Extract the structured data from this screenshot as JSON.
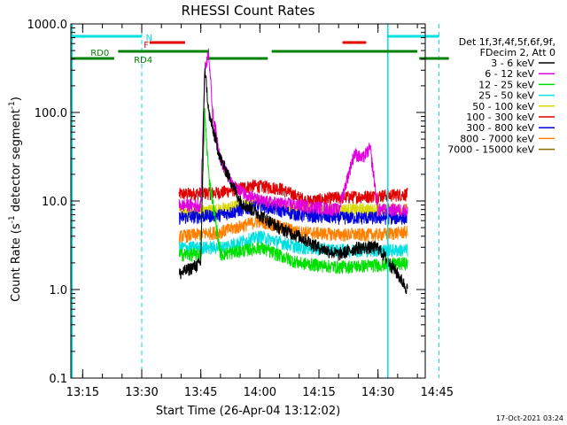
{
  "chart_data": {
    "type": "line",
    "title": "RHESSI Count Rates",
    "xlabel": "Start Time (26-Apr-04 13:12:02)",
    "ylabel_main": "Count Rate (s",
    "ylabel_exp": "-1",
    "ylabel_rest": " detector segment",
    "ylabel_exp2": "-1",
    "ylabel_end": ")",
    "y_scale": "log",
    "ylim": [
      0.1,
      1000
    ],
    "y_ticks": [
      {
        "v": 0.1,
        "label": "0.1"
      },
      {
        "v": 1,
        "label": "1.0"
      },
      {
        "v": 10,
        "label": "10.0"
      },
      {
        "v": 100,
        "label": "100.0"
      },
      {
        "v": 1000,
        "label": "1000.0"
      }
    ],
    "xlim_min": [
      792,
      882
    ],
    "x_ticks": [
      {
        "v": 795,
        "label": "13:15"
      },
      {
        "v": 810,
        "label": "13:30"
      },
      {
        "v": 825,
        "label": "13:45"
      },
      {
        "v": 840,
        "label": "14:00"
      },
      {
        "v": 855,
        "label": "14:15"
      },
      {
        "v": 870,
        "label": "14:30"
      },
      {
        "v": 885,
        "label": "14:45"
      }
    ],
    "data_start_min": 819.5,
    "data_end_min": 877.5,
    "legend": {
      "header": [
        "Det 1f,3f,4f,5f,6f,9f,",
        "FDecim 2, Att 0"
      ],
      "entries": [
        {
          "label": "3 - 6 keV",
          "color": "#000000"
        },
        {
          "label": "6 - 12 keV",
          "color": "#e000e0"
        },
        {
          "label": "12 - 25 keV",
          "color": "#00e000"
        },
        {
          "label": "25 - 50 keV",
          "color": "#00e0e0"
        },
        {
          "label": "50 - 100 keV",
          "color": "#d8d800"
        },
        {
          "label": "100 - 300 keV",
          "color": "#e00000"
        },
        {
          "label": "300 - 800 keV",
          "color": "#0000e0"
        },
        {
          "label": "800 - 7000 keV",
          "color": "#ff8000"
        },
        {
          "label": "7000 - 15000 keV",
          "color": "#8b6b00"
        }
      ]
    },
    "series": [
      {
        "color": "#e00000",
        "points": [
          [
            819.5,
            12
          ],
          [
            830,
            12.5
          ],
          [
            838,
            15
          ],
          [
            845,
            14
          ],
          [
            852,
            10
          ],
          [
            860,
            11
          ],
          [
            870,
            11.5
          ],
          [
            877.5,
            12
          ]
        ]
      },
      {
        "color": "#d8d800",
        "points": [
          [
            819.5,
            7.5
          ],
          [
            830,
            8
          ],
          [
            840,
            10
          ],
          [
            850,
            8
          ],
          [
            860,
            8
          ],
          [
            870,
            8
          ],
          [
            877.5,
            8
          ]
        ]
      },
      {
        "color": "#0000e0",
        "points": [
          [
            819.5,
            6.5
          ],
          [
            830,
            7
          ],
          [
            840,
            9
          ],
          [
            850,
            7
          ],
          [
            860,
            6.5
          ],
          [
            870,
            6.5
          ],
          [
            877.5,
            6.5
          ]
        ]
      },
      {
        "color": "#ff8000",
        "points": [
          [
            819.5,
            4
          ],
          [
            830,
            4.5
          ],
          [
            840,
            6
          ],
          [
            850,
            4.5
          ],
          [
            860,
            4.2
          ],
          [
            870,
            4.2
          ],
          [
            877.5,
            4.5
          ]
        ]
      },
      {
        "color": "#00e0e0",
        "points": [
          [
            819.5,
            3
          ],
          [
            830,
            3
          ],
          [
            840,
            4
          ],
          [
            850,
            3
          ],
          [
            860,
            2.8
          ],
          [
            870,
            2.8
          ],
          [
            877.5,
            2.8
          ]
        ]
      },
      {
        "color": "#00e000",
        "points": [
          [
            819.5,
            2.5
          ],
          [
            825,
            2.5
          ],
          [
            826,
            100
          ],
          [
            827,
            20
          ],
          [
            830,
            2.5
          ],
          [
            840,
            3
          ],
          [
            850,
            2
          ],
          [
            860,
            1.8
          ],
          [
            870,
            1.9
          ],
          [
            877.5,
            2
          ]
        ]
      },
      {
        "color": "#e000e0",
        "points": [
          [
            819.5,
            9
          ],
          [
            825,
            9
          ],
          [
            826,
            300
          ],
          [
            827,
            500
          ],
          [
            828,
            100
          ],
          [
            830,
            30
          ],
          [
            833,
            15
          ],
          [
            840,
            10
          ],
          [
            850,
            9
          ],
          [
            860,
            8
          ],
          [
            864,
            35
          ],
          [
            866,
            30
          ],
          [
            868,
            40
          ],
          [
            870,
            8
          ],
          [
            877.5,
            8
          ]
        ]
      },
      {
        "color": "#000000",
        "points": [
          [
            819.5,
            1.5
          ],
          [
            825,
            2
          ],
          [
            826,
            350
          ],
          [
            827,
            100
          ],
          [
            830,
            30
          ],
          [
            835,
            10
          ],
          [
            840,
            7
          ],
          [
            845,
            5
          ],
          [
            850,
            4
          ],
          [
            855,
            3
          ],
          [
            860,
            2.5
          ],
          [
            865,
            3
          ],
          [
            870,
            3
          ],
          [
            875,
            1.5
          ],
          [
            877.5,
            1
          ]
        ]
      }
    ],
    "vlines_solid": [
      {
        "x": 792.3,
        "color": "#00e0e0"
      },
      {
        "x": 872.5,
        "color": "#00e0e0"
      }
    ],
    "vlines_dashed": [
      {
        "x": 810,
        "color": "#00e0e0"
      },
      {
        "x": 885.5,
        "color": "#00e0e0"
      }
    ],
    "flag_bars": [
      {
        "x0": 792.3,
        "x1": 810,
        "y": 41,
        "color": "#00e0e0"
      },
      {
        "x0": 872.5,
        "x1": 885.5,
        "y": 41,
        "color": "#00e0e0"
      },
      {
        "x0": 812,
        "x1": 821,
        "y": 48,
        "color": "#e00000"
      },
      {
        "x0": 861,
        "x1": 867,
        "y": 48,
        "color": "#e00000"
      },
      {
        "x0": 792,
        "x1": 803,
        "y": 66,
        "color": "#008000"
      },
      {
        "x0": 804,
        "x1": 827,
        "y": 58,
        "color": "#008000"
      },
      {
        "x0": 827,
        "x1": 842,
        "y": 66,
        "color": "#008000"
      },
      {
        "x0": 843,
        "x1": 880,
        "y": 58,
        "color": "#008000"
      },
      {
        "x0": 880.5,
        "x1": 888,
        "y": 66,
        "color": "#008000"
      }
    ],
    "flag_labels": [
      {
        "text": "N",
        "x": 811,
        "y": 42,
        "color": "#00e0e0"
      },
      {
        "text": "F",
        "x": 810.5,
        "y": 50,
        "color": "#e00000"
      },
      {
        "text": "RD0",
        "x": 797,
        "y": 59,
        "color": "#008000"
      },
      {
        "text": "RD4",
        "x": 808,
        "y": 67,
        "color": "#008000"
      }
    ],
    "timestamp": "17-Oct-2021 03:24"
  }
}
